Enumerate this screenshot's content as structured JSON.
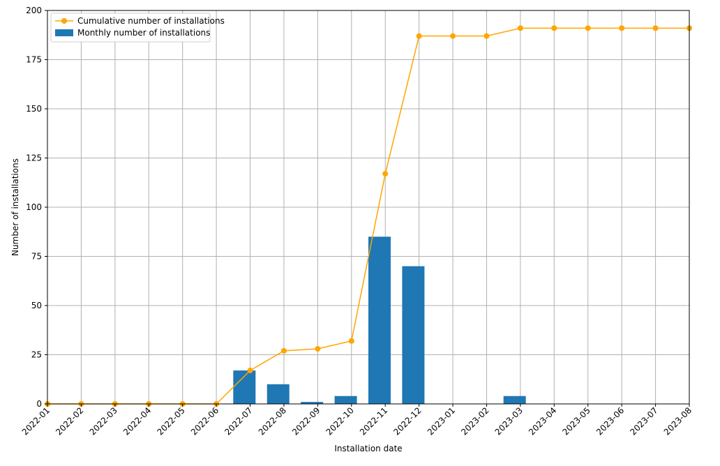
{
  "chart_data": {
    "type": "bar",
    "xlabel": "Installation date",
    "ylabel": "Number of installations",
    "ylim": [
      0,
      200
    ],
    "yticks": [
      0,
      25,
      50,
      75,
      100,
      125,
      150,
      175,
      200
    ],
    "grid": true,
    "legend_position": "top-left",
    "categories": [
      "2022-01",
      "2022-02",
      "2022-03",
      "2022-04",
      "2022-05",
      "2022-06",
      "2022-07",
      "2022-08",
      "2022-09",
      "2022-10",
      "2022-11",
      "2022-12",
      "2023-01",
      "2023-02",
      "2023-03",
      "2023-04",
      "2023-05",
      "2023-06",
      "2023-07",
      "2023-08"
    ],
    "series": [
      {
        "name": "Cumulative number of installations",
        "kind": "line",
        "color": "#FFA500",
        "values": [
          0,
          0,
          0,
          0,
          0,
          0,
          17,
          27,
          28,
          32,
          117,
          187,
          187,
          187,
          191,
          191,
          191,
          191,
          191,
          191
        ]
      },
      {
        "name": "Monthly number of installations",
        "kind": "bar",
        "color": "#1F77B4",
        "values": [
          0,
          0,
          0,
          0,
          0,
          0,
          17,
          10,
          1,
          4,
          85,
          70,
          0,
          0,
          4,
          0,
          0,
          0,
          0,
          0
        ]
      }
    ]
  }
}
